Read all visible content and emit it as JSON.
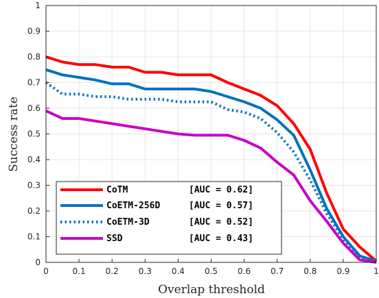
{
  "chart_data": {
    "type": "line",
    "xlabel": "Overlap threshold",
    "ylabel": "Success rate",
    "xlim": [
      0,
      1
    ],
    "ylim": [
      0,
      1
    ],
    "grid": true,
    "legend_position": "bottom-left",
    "x": [
      0,
      0.05,
      0.1,
      0.15,
      0.2,
      0.25,
      0.3,
      0.35,
      0.4,
      0.45,
      0.5,
      0.55,
      0.6,
      0.65,
      0.7,
      0.75,
      0.8,
      0.85,
      0.9,
      0.95,
      1.0
    ],
    "xticks": [
      "0",
      "0.1",
      "0.2",
      "0.3",
      "0.4",
      "0.5",
      "0.6",
      "0.7",
      "0.8",
      "0.9",
      "1"
    ],
    "yticks": [
      "0",
      "0.1",
      "0.2",
      "0.3",
      "0.4",
      "0.5",
      "0.6",
      "0.7",
      "0.8",
      "0.9",
      "1"
    ],
    "series": [
      {
        "name": "CoTM",
        "auc": "[AUC = 0.62]",
        "color": "#ff0000",
        "dash": "solid",
        "values": [
          0.8,
          0.78,
          0.77,
          0.77,
          0.76,
          0.76,
          0.74,
          0.74,
          0.73,
          0.73,
          0.73,
          0.7,
          0.675,
          0.65,
          0.61,
          0.54,
          0.44,
          0.27,
          0.13,
          0.06,
          0.005
        ]
      },
      {
        "name": "CoETM-256D",
        "auc": "[AUC = 0.57]",
        "color": "#0072bd",
        "dash": "solid",
        "values": [
          0.75,
          0.73,
          0.72,
          0.71,
          0.695,
          0.695,
          0.675,
          0.675,
          0.675,
          0.675,
          0.665,
          0.645,
          0.625,
          0.6,
          0.555,
          0.495,
          0.36,
          0.21,
          0.1,
          0.025,
          0.005
        ]
      },
      {
        "name": "CoETM-3D",
        "auc": "[AUC = 0.52]",
        "color": "#0072bd",
        "dash": "dotted",
        "values": [
          0.7,
          0.655,
          0.655,
          0.645,
          0.645,
          0.635,
          0.635,
          0.635,
          0.625,
          0.625,
          0.625,
          0.595,
          0.585,
          0.56,
          0.505,
          0.43,
          0.32,
          0.19,
          0.09,
          0.02,
          0.005
        ]
      },
      {
        "name": "SSD",
        "auc": "[AUC = 0.43]",
        "color": "#c800c8",
        "dash": "solid",
        "values": [
          0.59,
          0.56,
          0.56,
          0.55,
          0.54,
          0.53,
          0.52,
          0.51,
          0.5,
          0.495,
          0.495,
          0.495,
          0.475,
          0.445,
          0.39,
          0.34,
          0.24,
          0.16,
          0.075,
          0.01,
          0.0
        ]
      }
    ]
  }
}
